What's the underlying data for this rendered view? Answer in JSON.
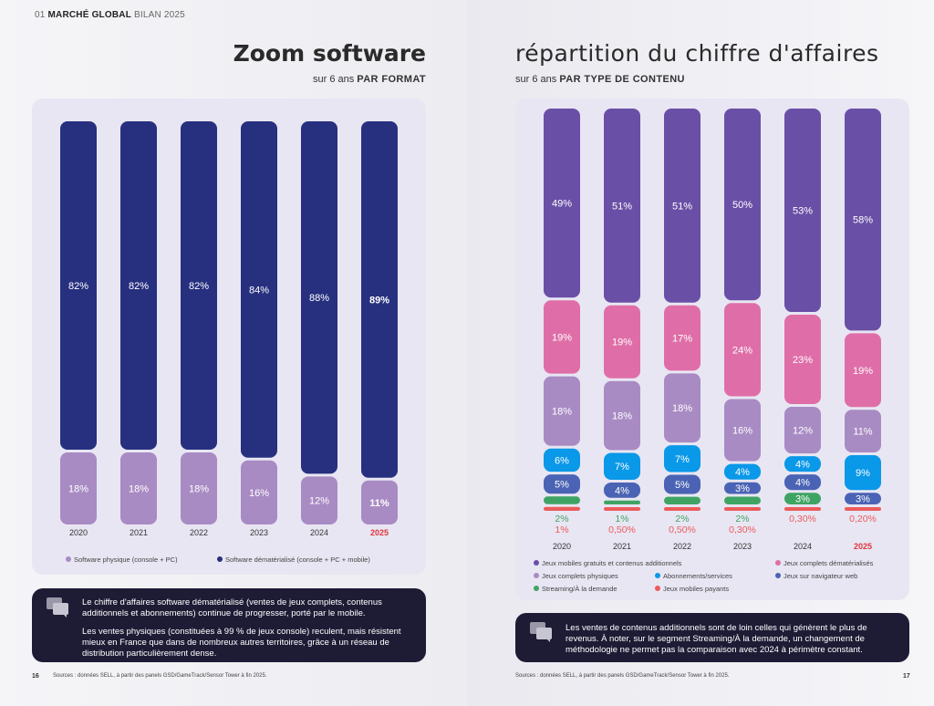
{
  "left": {
    "header_num": "01",
    "header_bold": "MARCHÉ GLOBAL",
    "header_rest": "BILAN 2025",
    "title": "Zoom software",
    "subtitle_pre": "sur 6 ans",
    "subtitle_bold": "PAR FORMAT",
    "note": [
      "Le chiffre d'affaires software dématérialisé (ventes de jeux complets, contenus additionnels et abonnements) continue de progresser, porté par le mobile.",
      "Les ventes physiques (constituées à 99 % de jeux console) reculent, mais résistent mieux en France que dans de nombreux autres territoires, grâce à un réseau de distribution particulièrement dense."
    ],
    "source": "Sources : données SELL, à partir des panels GSD/GameTrack/Sensor Tower à fin 2025.",
    "page": "16"
  },
  "right": {
    "title": "répartition du chiffre d'affaires",
    "subtitle_pre": "sur 6 ans",
    "subtitle_bold": "PAR TYPE DE CONTENU",
    "note": [
      "Les ventes de contenus additionnels sont de loin celles qui génèrent le plus de revenus. À noter, sur le segment Streaming/À la demande, un changement de méthodologie ne permet pas la comparaison avec 2024 à périmètre constant."
    ],
    "source": "Sources : données SELL, à partir des panels GSD/GameTrack/Sensor Tower à fin 2025.",
    "page": "17"
  },
  "icons": {
    "note": "speech-bubbles-icon"
  },
  "chart_data": [
    {
      "type": "bar",
      "stacked": true,
      "categories": [
        "2020",
        "2021",
        "2022",
        "2023",
        "2024",
        "2025"
      ],
      "highlight_category": "2025",
      "highlight_color": "#e0353e",
      "series": [
        {
          "name": "Software physique (console + PC)",
          "color": "#a98bc4",
          "values": [
            18,
            18,
            18,
            16,
            12,
            11
          ],
          "labels": [
            "18%",
            "18%",
            "18%",
            "16%",
            "12%",
            "11%"
          ]
        },
        {
          "name": "Software dématérialisé (console + PC + mobile)",
          "color": "#27307f",
          "values": [
            82,
            82,
            82,
            84,
            88,
            89
          ],
          "labels": [
            "82%",
            "82%",
            "82%",
            "84%",
            "88%",
            "89%"
          ]
        }
      ],
      "ylim": [
        0,
        100
      ],
      "legend": "bottom"
    },
    {
      "type": "bar",
      "stacked": true,
      "categories": [
        "2020",
        "2021",
        "2022",
        "2023",
        "2024",
        "2025"
      ],
      "highlight_category": "2025",
      "highlight_color": "#e0353e",
      "series": [
        {
          "name": "Jeux mobiles payants",
          "color": "#ec5b5b",
          "values": [
            1,
            0.5,
            0.5,
            0.3,
            0.3,
            0.2
          ],
          "labels": [
            "1%",
            "0,50%",
            "0,50%",
            "0,30%",
            "0,30%",
            "0,20%"
          ]
        },
        {
          "name": "Streaming/À la demande",
          "color": "#3fa463",
          "values": [
            2,
            1,
            2,
            2,
            3,
            null
          ],
          "labels": [
            "2%",
            "1%",
            "2%",
            "2%",
            "3%",
            null
          ]
        },
        {
          "name": "Jeux sur navigateur web",
          "color": "#4a63b4",
          "values": [
            5,
            4,
            5,
            3,
            4,
            3
          ],
          "labels": [
            "5%",
            "4%",
            "5%",
            "3%",
            "4%",
            "3%"
          ]
        },
        {
          "name": "Abonnements/services",
          "color": "#0a98e8",
          "values": [
            6,
            7,
            7,
            4,
            4,
            9
          ],
          "labels": [
            "6%",
            "7%",
            "7%",
            "4%",
            "4%",
            "9%"
          ]
        },
        {
          "name": "Jeux complets physiques",
          "color": "#a98bc4",
          "values": [
            18,
            18,
            18,
            16,
            12,
            11
          ],
          "labels": [
            "18%",
            "18%",
            "18%",
            "16%",
            "12%",
            "11%"
          ]
        },
        {
          "name": "Jeux complets dématérialisés",
          "color": "#df6ea8",
          "values": [
            19,
            19,
            17,
            24,
            23,
            19
          ],
          "labels": [
            "19%",
            "19%",
            "17%",
            "24%",
            "23%",
            "19%"
          ]
        },
        {
          "name": "Jeux mobiles gratuits et contenus additionnels",
          "color": "#6a4fa6",
          "values": [
            49,
            51,
            51,
            50,
            53,
            58
          ],
          "labels": [
            "49%",
            "51%",
            "51%",
            "50%",
            "53%",
            "58%"
          ]
        }
      ],
      "ylim": [
        0,
        100
      ],
      "legend": "bottom"
    }
  ]
}
